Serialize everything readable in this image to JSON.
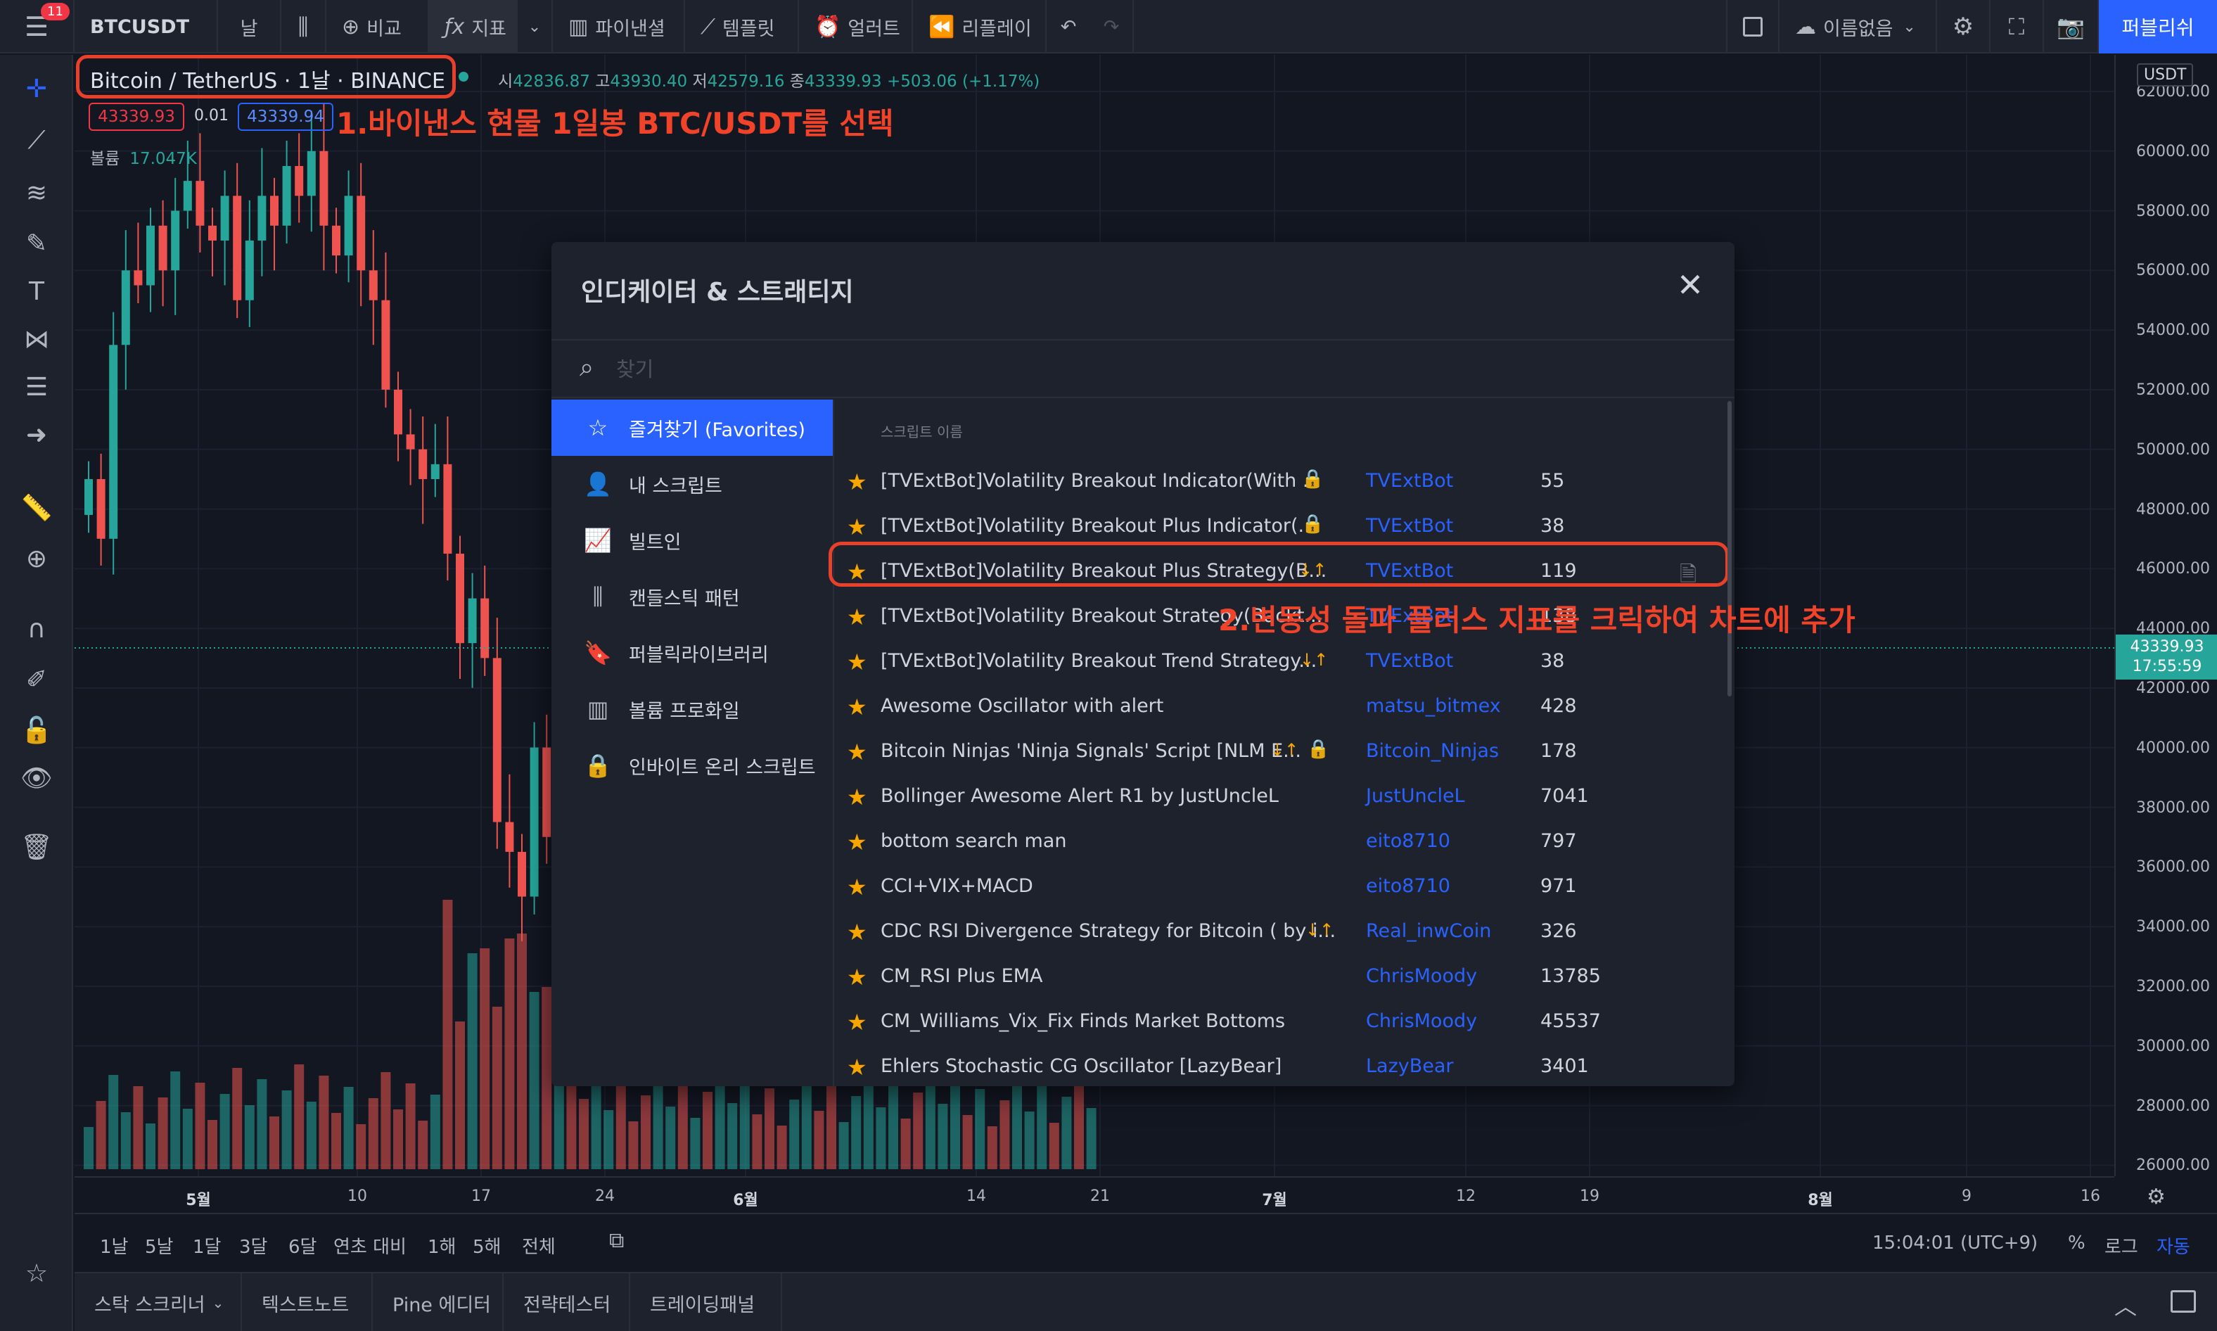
{
  "topbar": {
    "badge": "11",
    "symbol": "BTCUSDT",
    "interval": "날",
    "compare": "비교",
    "indicators": "지표",
    "financials": "파이낸셜",
    "templates": "템플릿",
    "alert": "얼러트",
    "replay": "리플레이",
    "layout_name": "이름없음",
    "publish": "퍼블리쉬"
  },
  "legend": {
    "symbol_title": "Bitcoin / TetherUS · 1날 · BINANCE",
    "ohlc_label_open": "시",
    "open": "42836.87",
    "ohlc_label_high": "고",
    "high": "43930.40",
    "ohlc_label_low": "저",
    "low": "42579.16",
    "ohlc_label_close": "종",
    "close": "43339.93",
    "change": "+503.06 (+1.17%)",
    "bid": "43339.93",
    "spread": "0.01",
    "ask": "43339.94",
    "volume_label": "볼륨",
    "volume_value": "17.047K"
  },
  "annotations": {
    "step1": "1.바이낸스 현물 1일봉 BTC/USDT를 선택",
    "step2": "2.변동성 돌파 플러스 지표를 크릭하여 차트에 추가"
  },
  "price_scale": {
    "currency": "USDT",
    "ticks": [
      "62000.00",
      "60000.00",
      "58000.00",
      "56000.00",
      "54000.00",
      "52000.00",
      "50000.00",
      "48000.00",
      "46000.00",
      "44000.00",
      "42000.00",
      "40000.00",
      "38000.00",
      "36000.00",
      "34000.00",
      "32000.00",
      "30000.00",
      "28000.00",
      "26000.00"
    ],
    "last_price": "43339.93",
    "countdown": "17:55:59"
  },
  "time_scale": {
    "ticks": [
      "5월",
      "10",
      "17",
      "24",
      "6월",
      "14",
      "21",
      "7월",
      "12",
      "19",
      "8월",
      "9",
      "16"
    ]
  },
  "range_bar": {
    "ranges": [
      "1날",
      "5날",
      "1달",
      "3달",
      "6달",
      "연초 대비",
      "1해",
      "5해",
      "전체"
    ],
    "clock": "15:04:01 (UTC+9)",
    "percent": "%",
    "log": "로그",
    "auto": "자동"
  },
  "bottom_panel": {
    "tabs": [
      "스탁 스크리너",
      "텍스트노트",
      "Pine 에디터",
      "전략테스터",
      "트레이딩패널"
    ]
  },
  "dialog": {
    "title": "인디케이터 & 스트래티지",
    "search_placeholder": "찾기",
    "sidebar": [
      {
        "label": "즐겨찾기 (Favorites)",
        "icon": "star-icon"
      },
      {
        "label": "내 스크립트",
        "icon": "user-icon"
      },
      {
        "label": "빌트인",
        "icon": "builtin-chart-icon"
      },
      {
        "label": "캔들스틱 패턴",
        "icon": "candlestick-icon"
      },
      {
        "label": "퍼블릭라이브러리",
        "icon": "bookmark-icon"
      },
      {
        "label": "볼륨 프로화일",
        "icon": "volume-profile-icon"
      },
      {
        "label": "인바이트 온리 스크립트",
        "icon": "lock-icon"
      }
    ],
    "column_header": "스크립트 이름",
    "rows": [
      {
        "name": "[TVExtBot]Volatility Breakout Indicator(With ...",
        "author": "TVExtBot",
        "likes": "55"
      },
      {
        "name": "[TVExtBot]Volatility Breakout Plus Indicator(...",
        "author": "TVExtBot",
        "likes": "38"
      },
      {
        "name": "[TVExtBot]Volatility Breakout Plus Strategy(B...",
        "author": "TVExtBot",
        "likes": "119"
      },
      {
        "name": "[TVExtBot]Volatility Breakout Strategy(Backt...",
        "author": "TVExtBot",
        "likes": "138"
      },
      {
        "name": "[TVExtBot]Volatility Breakout Trend Strategy...",
        "author": "TVExtBot",
        "likes": "38"
      },
      {
        "name": "Awesome Oscillator with alert",
        "author": "matsu_bitmex",
        "likes": "428"
      },
      {
        "name": "Bitcoin Ninjas 'Ninja Signals' Script [NLM E...",
        "author": "Bitcoin_Ninjas",
        "likes": "178"
      },
      {
        "name": "Bollinger Awesome Alert R1 by JustUncleL",
        "author": "JustUncleL",
        "likes": "7041"
      },
      {
        "name": "bottom search man",
        "author": "eito8710",
        "likes": "797"
      },
      {
        "name": "CCI+VIX+MACD",
        "author": "eito8710",
        "likes": "971"
      },
      {
        "name": "CDC RSI Divergence Strategy for Bitcoin ( by i...",
        "author": "Real_inwCoin",
        "likes": "326"
      },
      {
        "name": "CM_RSI Plus EMA",
        "author": "ChrisMoody",
        "likes": "13785"
      },
      {
        "name": "CM_Williams_Vix_Fix Finds Market Bottoms",
        "author": "ChrisMoody",
        "likes": "45537"
      },
      {
        "name": "Ehlers Stochastic CG Oscillator [LazyBear]",
        "author": "LazyBear",
        "likes": "3401"
      }
    ],
    "flag_icon": "↓↑"
  },
  "colors": {
    "up": "#26a69a",
    "down": "#ef5350",
    "accent": "#2962ff",
    "annotation": "#f0432a"
  }
}
